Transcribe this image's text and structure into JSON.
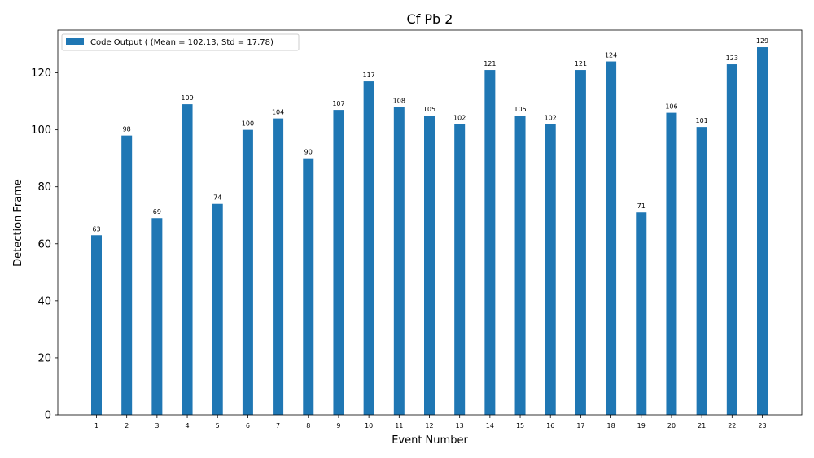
{
  "chart_data": {
    "type": "bar",
    "title": "Cf Pb 2",
    "xlabel": "Event Number",
    "ylabel": "Detection Frame",
    "categories": [
      "1",
      "2",
      "3",
      "4",
      "5",
      "6",
      "7",
      "8",
      "9",
      "10",
      "11",
      "12",
      "13",
      "14",
      "15",
      "16",
      "17",
      "18",
      "19",
      "20",
      "21",
      "22",
      "23"
    ],
    "series": [
      {
        "name": "Code Output ( (Mean = 102.13, Std = 17.78)",
        "values": [
          63,
          98,
          69,
          109,
          74,
          100,
          104,
          90,
          107,
          117,
          108,
          105,
          102,
          121,
          105,
          102,
          121,
          124,
          71,
          106,
          101,
          123,
          129
        ],
        "color": "#1f77b4"
      }
    ],
    "ylim": [
      0,
      135
    ],
    "yticks": [
      0,
      20,
      40,
      60,
      80,
      100,
      120
    ],
    "legend_position": "top-left",
    "grid": false,
    "data_labels": true
  }
}
